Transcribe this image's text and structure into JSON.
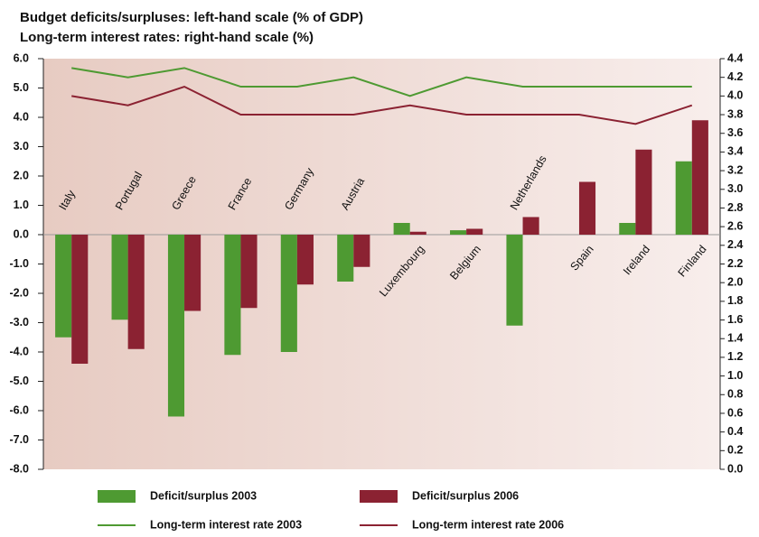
{
  "chart_data": {
    "type": "bar",
    "title": "Budget deficits/surpluses: left-hand scale (% of GDP)",
    "subtitle": "Long-term interest rates: right-hand scale (%)",
    "categories": [
      "Italy",
      "Portugal",
      "Greece",
      "France",
      "Germany",
      "Austria",
      "Luxembourg",
      "Belgium",
      "Netherlands",
      "Spain",
      "Ireland",
      "Finland"
    ],
    "series": [
      {
        "name": "Deficit/surplus 2003",
        "color": "#4e9a32",
        "values": [
          -3.5,
          -2.9,
          -6.2,
          -4.1,
          -4.0,
          -1.6,
          0.4,
          0.15,
          -3.1,
          0.0,
          0.4,
          2.5
        ]
      },
      {
        "name": "Deficit/surplus 2006",
        "color": "#8b2232",
        "values": [
          -4.4,
          -3.9,
          -2.6,
          -2.5,
          -1.7,
          -1.1,
          0.1,
          0.2,
          0.6,
          1.8,
          2.9,
          3.9
        ]
      },
      {
        "name": "Long-term interest rate 2003",
        "color": "#4e9a32",
        "type": "line",
        "axis": "y2",
        "values": [
          4.3,
          4.2,
          4.3,
          4.1,
          4.1,
          4.2,
          4.0,
          4.2,
          4.1,
          4.1,
          4.1,
          4.1
        ]
      },
      {
        "name": "Long-term interest rate 2006",
        "color": "#8b2232",
        "type": "line",
        "axis": "y2",
        "values": [
          4.0,
          3.9,
          4.1,
          3.8,
          3.8,
          3.8,
          3.9,
          3.8,
          3.8,
          3.8,
          3.7,
          3.9
        ]
      }
    ],
    "ylim": [
      -8,
      6
    ],
    "yticks": [
      {
        "value": 6,
        "label": "6.0"
      },
      {
        "value": 5,
        "label": "5.0"
      },
      {
        "value": 4,
        "label": "4.0"
      },
      {
        "value": 3,
        "label": "3.0"
      },
      {
        "value": 2,
        "label": "2.0"
      },
      {
        "value": 1,
        "label": "1.0"
      },
      {
        "value": 0,
        "label": "0.0"
      },
      {
        "value": -1,
        "label": "-1.0"
      },
      {
        "value": -2,
        "label": "-2.0"
      },
      {
        "value": -3,
        "label": "-3.0"
      },
      {
        "value": -4,
        "label": "-4.0"
      },
      {
        "value": -5,
        "label": "-5.0"
      },
      {
        "value": -6,
        "label": "-6.0"
      },
      {
        "value": -7,
        "label": "-7.0"
      },
      {
        "value": -8,
        "label": "-8.0"
      }
    ],
    "y2lim": [
      0,
      4.4
    ],
    "y2ticks": [
      4.4,
      4.2,
      {
        "value": 4,
        "label": "4.0"
      },
      3.8,
      3.6,
      3.4,
      3.2,
      {
        "value": 3,
        "label": "3.0"
      },
      2.8,
      2.6,
      2.4,
      2.2,
      {
        "value": 2,
        "label": "2.0"
      },
      1.8,
      1.6,
      1.4,
      1.2,
      {
        "value": 1,
        "label": "1.0"
      },
      0.8,
      0.6,
      0.4,
      0.2,
      {
        "value": 0,
        "label": "0.0"
      }
    ]
  }
}
